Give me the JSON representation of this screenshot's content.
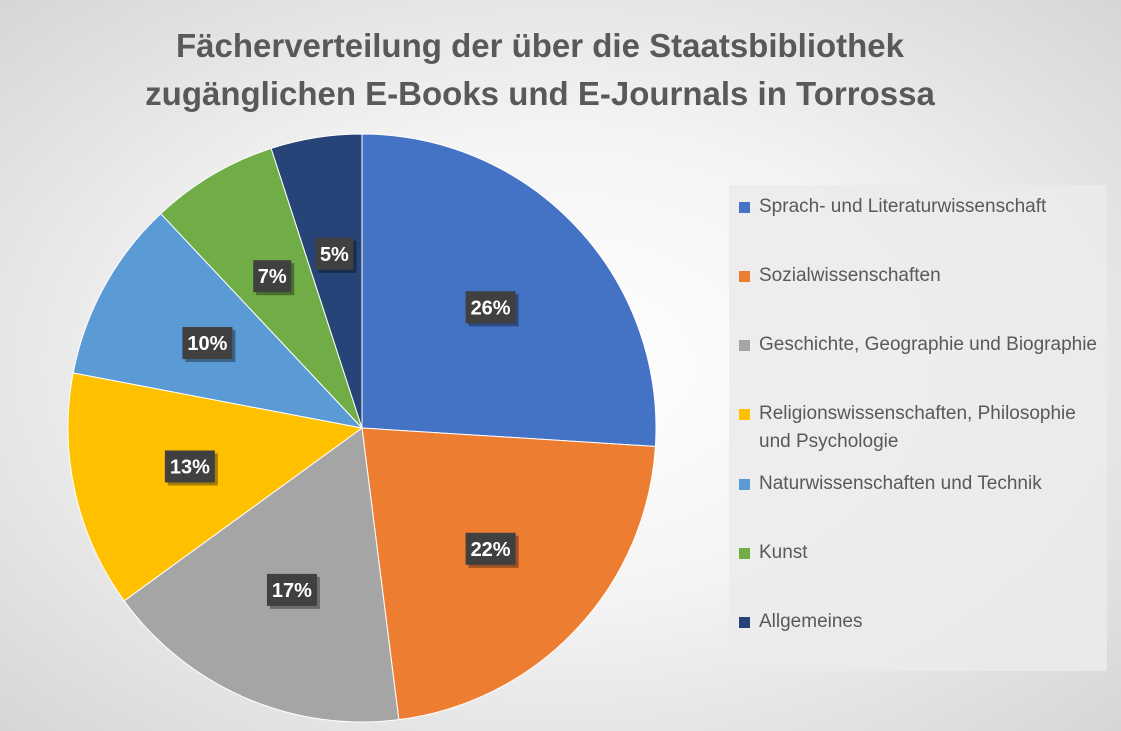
{
  "chart_data": {
    "type": "pie",
    "title": "Fächerverteilung der über die Staatsbibliothek zugänglichen E-Books und E-Journals in Torrossa",
    "title_lines": [
      "Fächerverteilung der über die Staatsbibliothek",
      "zugänglichen E-Books und E-Journals in Torrossa"
    ],
    "legend_position": "right",
    "slices": [
      {
        "label": "Sprach- und Literaturwissenschaft",
        "value": 26,
        "display": "26%",
        "color": "#4472C4"
      },
      {
        "label": "Sozialwissenschaften",
        "value": 22,
        "display": "22%",
        "color": "#ED7D31"
      },
      {
        "label": "Geschichte, Geographie und Biographie",
        "value": 17,
        "display": "17%",
        "color": "#A5A5A5"
      },
      {
        "label": "Religionswissenschaften, Philosophie und Psychologie",
        "value": 13,
        "display": "13%",
        "color": "#FFC000"
      },
      {
        "label": "Naturwissenschaften und Technik",
        "value": 10,
        "display": "10%",
        "color": "#5B9BD5"
      },
      {
        "label": "Kunst",
        "value": 7,
        "display": "7%",
        "color": "#70AD47"
      },
      {
        "label": "Allgemeines",
        "value": 5,
        "display": "5%",
        "color": "#264478"
      }
    ]
  }
}
